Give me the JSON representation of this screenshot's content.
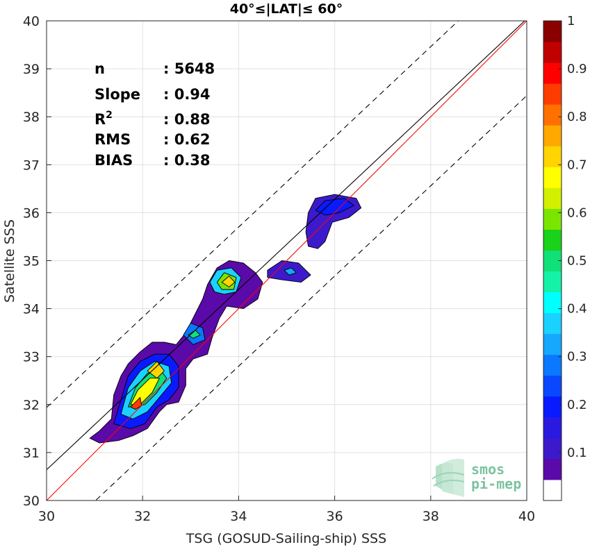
{
  "chart_data": {
    "type": "heatmap",
    "title": "40°≤|LAT|≤ 60°",
    "xlabel": "TSG (GOSUD-Sailing-ship) SSS",
    "ylabel": "Satellite SSS",
    "xlim": [
      30,
      40
    ],
    "ylim": [
      30,
      40
    ],
    "xticks": [
      "30",
      "32",
      "34",
      "36",
      "38",
      "40"
    ],
    "yticks": [
      "30",
      "31",
      "32",
      "33",
      "34",
      "35",
      "36",
      "37",
      "38",
      "39",
      "40"
    ],
    "grid": true,
    "stats": [
      {
        "label": "n",
        "value": ": 5648"
      },
      {
        "label": "Slope",
        "value": ": 0.94"
      },
      {
        "label": "R",
        "sup": "2",
        "value": ": 0.88"
      },
      {
        "label": "RMS",
        "value": ": 0.62"
      },
      {
        "label": "BIAS",
        "value": ": 0.38"
      }
    ],
    "lines": {
      "identity_color": "#ff0000",
      "fit_color": "#000000",
      "fit": {
        "slope": 0.94,
        "intercept": 2.44
      },
      "envelope_offset": 1.3
    },
    "colorbar": {
      "range": [
        0,
        1
      ],
      "ticks": [
        "0.1",
        "0.2",
        "0.3",
        "0.4",
        "0.5",
        "0.6",
        "0.7",
        "0.8",
        "0.9",
        "1"
      ],
      "levels": [
        0.05,
        0.1,
        0.15,
        0.2,
        0.25,
        0.3,
        0.35,
        0.4,
        0.45,
        0.5,
        0.55,
        0.6,
        0.65,
        0.7,
        0.75,
        0.8,
        0.85,
        0.9,
        0.95
      ],
      "colors": [
        "#ffffff",
        "#5a0aa8",
        "#3c1acc",
        "#2a1ae0",
        "#0a1aff",
        "#0a48ff",
        "#0a78ff",
        "#14a8ff",
        "#1ad2ff",
        "#00ffff",
        "#14f2a8",
        "#10e078",
        "#1ad21a",
        "#7ae600",
        "#d2f000",
        "#ffff00",
        "#ffd400",
        "#ffa800",
        "#ff7000",
        "#ff3c00",
        "#ff0000",
        "#c00000",
        "#8a0000"
      ]
    },
    "density_peaks": [
      {
        "x": 31.85,
        "y": 32.05,
        "value": 0.93
      },
      {
        "x": 32.25,
        "y": 32.8,
        "value": 0.72
      },
      {
        "x": 33.8,
        "y": 34.55,
        "value": 0.72
      },
      {
        "x": 33.1,
        "y": 33.45,
        "value": 0.55
      },
      {
        "x": 35.1,
        "y": 34.75,
        "value": 0.3
      },
      {
        "x": 36.0,
        "y": 36.1,
        "value": 0.2
      }
    ],
    "watermark": {
      "line1": "smos",
      "line2": "pi-mep"
    }
  }
}
